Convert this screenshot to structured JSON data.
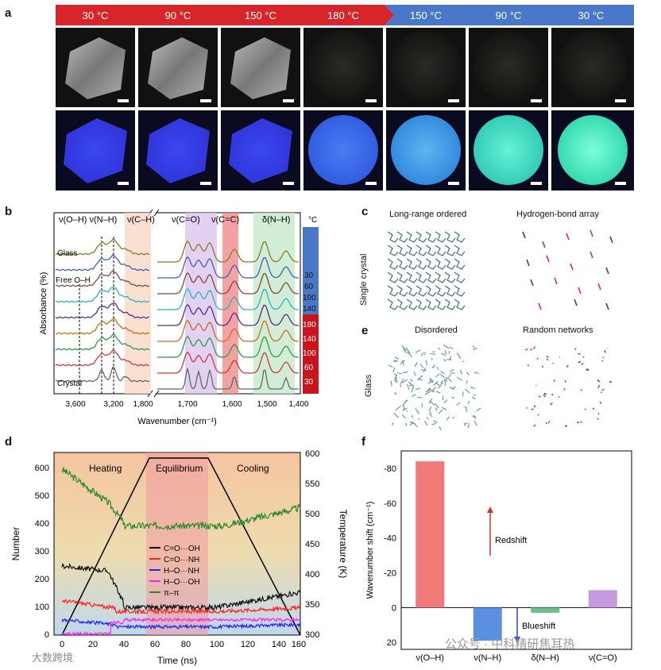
{
  "panels": {
    "a": "a",
    "b": "b",
    "c": "c",
    "d": "d",
    "e": "e",
    "f": "f"
  },
  "panel_a": {
    "heating_temps": [
      "30 °C",
      "90 °C",
      "150 °C",
      "180 °C"
    ],
    "cooling_temps": [
      "150 °C",
      "90 °C",
      "30 °C"
    ],
    "heating_color": "#d7262b",
    "cooling_color": "#4a78c8"
  },
  "panel_b": {
    "ylabel": "Absorbance (%)",
    "xlabel": "Wavenumber (cm⁻¹)",
    "xticks": [
      "3,600",
      "3,200",
      "1,800",
      "1,700",
      "1,600",
      "1,500",
      "1,400"
    ],
    "band_labels": [
      "ν(O–H) ν(N–H)",
      "ν(C–H)",
      "ν(C=O)",
      "ν(C=C)",
      "δ(N–H)"
    ],
    "annotations": [
      "Glass",
      "Free O–H",
      "Crystal"
    ],
    "temp_unit": "°C",
    "cooling_temps": [
      "30",
      "60",
      "100",
      "140"
    ],
    "heating_temps": [
      "180",
      "140",
      "100",
      "60",
      "30"
    ]
  },
  "panel_c": {
    "row_label": "Single crystal",
    "titles": [
      "Long-range ordered",
      "Hydrogen-bond array"
    ]
  },
  "panel_e": {
    "row_label": "Glass",
    "titles": [
      "Disordered",
      "Random networks"
    ]
  },
  "panel_d": {
    "xlabel": "Time (ns)",
    "ylabel": "Number",
    "y2label": "Temperature (K)",
    "phases": [
      "Heating",
      "Equilibrium",
      "Cooling"
    ],
    "xticks": [
      "0",
      "20",
      "40",
      "60",
      "80",
      "100",
      "120",
      "140",
      "160"
    ],
    "yticks": [
      "0",
      "100",
      "200",
      "300",
      "400",
      "500",
      "600"
    ],
    "y2ticks": [
      "300",
      "350",
      "400",
      "450",
      "500",
      "550",
      "600"
    ],
    "legend": [
      "C=O···OH",
      "C=O···NH",
      "H–O···NH",
      "H–O···OH",
      "π–π"
    ],
    "legend_colors": [
      "#111111",
      "#ff2020",
      "#2020ff",
      "#ff20ff",
      "#2e8b2e"
    ]
  },
  "chart_data": {
    "type": "bar",
    "categories": [
      "ν(O–H)",
      "ν(N–H)",
      "δ(N–H)",
      "ν(C=O)"
    ],
    "values": [
      -84,
      19,
      3,
      -10
    ],
    "colors": [
      "#f07a78",
      "#5b8fe0",
      "#6cc08a",
      "#c59be0"
    ],
    "ylabel": "Wavenumber shift (cm⁻¹)",
    "yticks": [
      "-80",
      "-60",
      "-40",
      "-20",
      "0",
      "20"
    ],
    "ylim": [
      -90,
      24
    ],
    "annotations": [
      "Redshift",
      "Blueshift"
    ]
  },
  "watermark": "公众号 · 中科精研焦耳热",
  "watermark2": "大数跨境"
}
